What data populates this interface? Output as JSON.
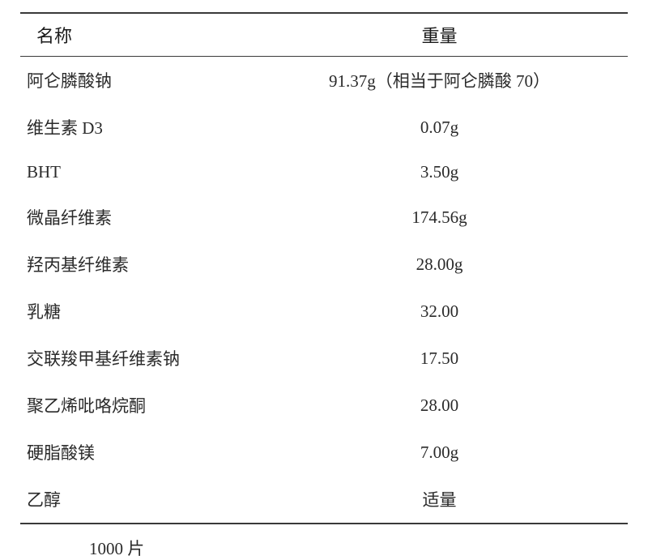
{
  "table": {
    "columns": [
      "名称",
      "重量"
    ],
    "rows": [
      {
        "name": "阿仑膦酸钠",
        "weight": "91.37g（相当于阿仑膦酸 70）"
      },
      {
        "name": "维生素 D3",
        "weight": "0.07g"
      },
      {
        "name": "BHT",
        "weight": "3.50g"
      },
      {
        "name": "微晶纤维素",
        "weight": "174.56g"
      },
      {
        "name": "羟丙基纤维素",
        "weight": "28.00g"
      },
      {
        "name": "乳糖",
        "weight": "32.00"
      },
      {
        "name": "交联羧甲基纤维素钠",
        "weight": "17.50"
      },
      {
        "name": "聚乙烯吡咯烷酮",
        "weight": "28.00"
      },
      {
        "name": "硬脂酸镁",
        "weight": "7.00g"
      },
      {
        "name": "乙醇",
        "weight": "适量"
      }
    ],
    "footer_note": "1000 片",
    "border_color": "#3a3a3a",
    "text_color": "#2a2a2a",
    "header_fontsize": 22,
    "cell_fontsize": 21,
    "background_color": "#ffffff"
  }
}
